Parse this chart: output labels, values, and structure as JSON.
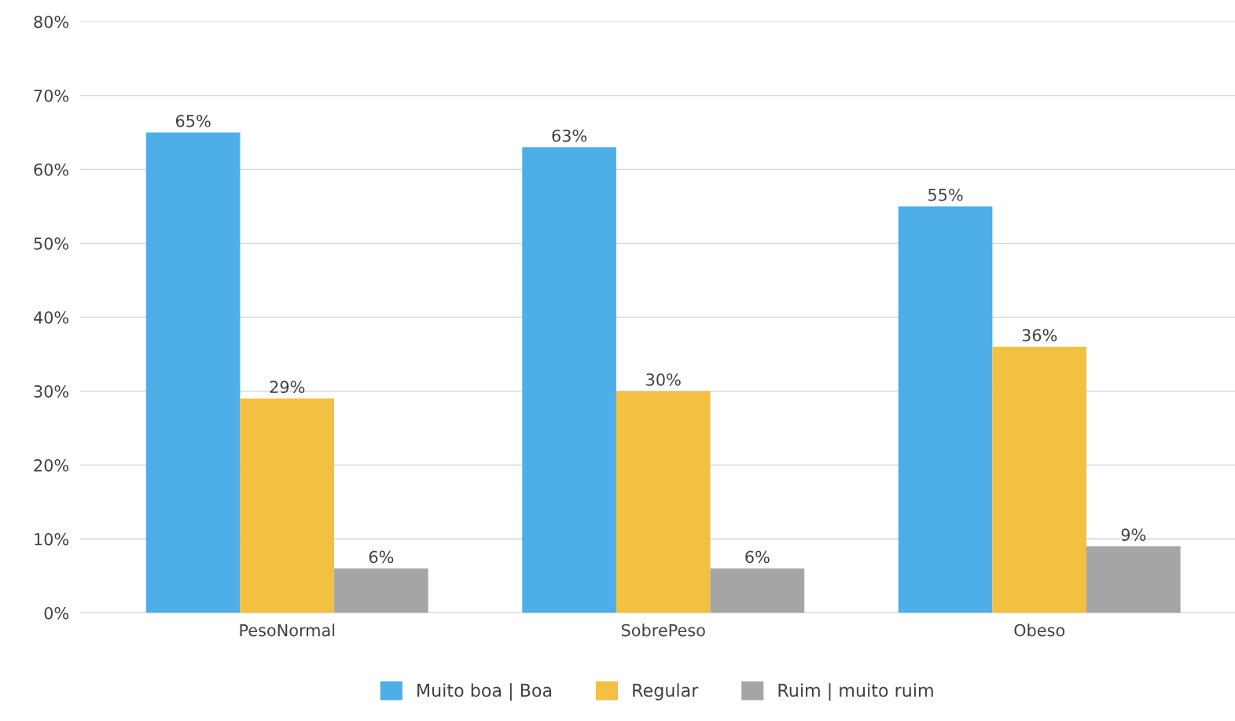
{
  "chart_data": {
    "type": "bar",
    "categories": [
      "PesoNormal",
      "SobrePeso",
      "Obeso"
    ],
    "series": [
      {
        "name": "Muito boa | Boa",
        "color": "#4daee8",
        "values": [
          65,
          63,
          55
        ],
        "value_labels": [
          "65%",
          "63%",
          "55%"
        ]
      },
      {
        "name": "Regular",
        "color": "#f4c042",
        "values": [
          29,
          30,
          36
        ],
        "value_labels": [
          "29%",
          "30%",
          "36%"
        ]
      },
      {
        "name": "Ruim | muito ruim",
        "color": "#a5a5a5",
        "values": [
          6,
          6,
          9
        ],
        "value_labels": [
          "6%",
          "6%",
          "9%"
        ]
      }
    ],
    "ylim": [
      0,
      80
    ],
    "yticks": [
      {
        "value": 0,
        "label": "0%"
      },
      {
        "value": 10,
        "label": "10%"
      },
      {
        "value": 20,
        "label": "20%"
      },
      {
        "value": 30,
        "label": "30%"
      },
      {
        "value": 40,
        "label": "40%"
      },
      {
        "value": 50,
        "label": "50%"
      },
      {
        "value": 60,
        "label": "60%"
      },
      {
        "value": 70,
        "label": "70%"
      },
      {
        "value": 80,
        "label": "80%"
      }
    ],
    "grid": "y",
    "legend": "bottom"
  }
}
